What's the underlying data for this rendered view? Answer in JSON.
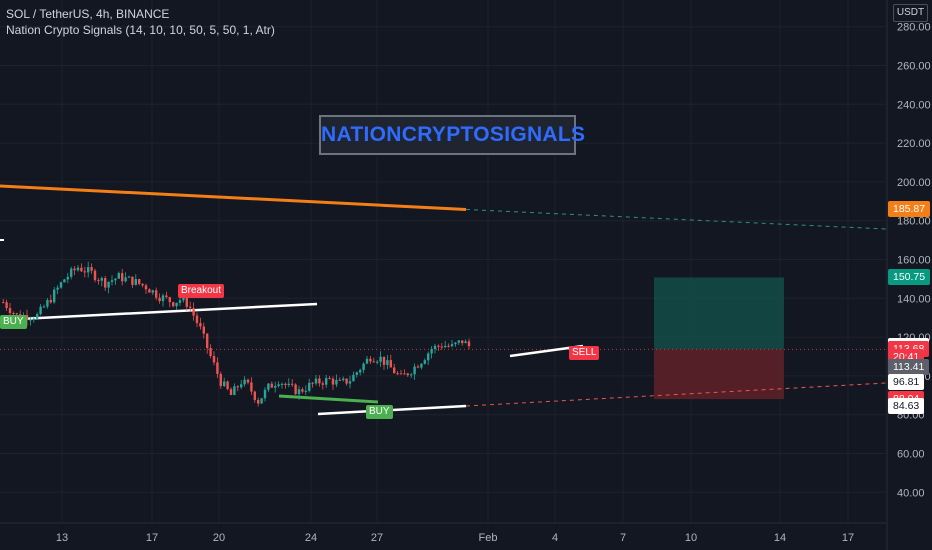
{
  "header": {
    "symbol_line": "SOL / TetherUS, 4h, BINANCE",
    "indicator_line": "Nation Crypto Signals  (14, 10, 10, 50, 5, 50, 1, Atr)"
  },
  "price_axis_unit": "USDT",
  "watermark": "NATIONCRYPTOSIGNALS",
  "signal_labels": {
    "breakout": "Breakout",
    "buy_left": "BUY",
    "buy_bottom": "BUY",
    "sell": "SELL"
  },
  "price_labels": [
    {
      "key": "orange_line",
      "text": "185.87",
      "price": 185.87,
      "bg": "#f57f17",
      "fg": "#ffffff"
    },
    {
      "key": "take_profit",
      "text": "150.75",
      "price": 150.75,
      "bg": "#089981",
      "fg": "#ffffff"
    },
    {
      "key": "high",
      "text": "115.56",
      "price": 115.56,
      "bg": "#ffffff",
      "fg": "#131722"
    },
    {
      "key": "last",
      "text": "113.68",
      "price": 113.68,
      "bg": "#f23645",
      "fg": "#ffffff"
    },
    {
      "key": "countdown",
      "text": "20:41",
      "price": 109.6,
      "bg": "#f23645",
      "fg": "#ffffff"
    },
    {
      "key": "trend",
      "text": "113.41",
      "price": 104.5,
      "bg": "#5d606b",
      "fg": "#ffffff"
    },
    {
      "key": "low",
      "text": "96.81",
      "price": 96.81,
      "bg": "#ffffff",
      "fg": "#131722"
    },
    {
      "key": "stop",
      "text": "88.04",
      "price": 88.04,
      "bg": "#f23645",
      "fg": "#ffffff"
    },
    {
      "key": "close_low",
      "text": "84.63",
      "price": 84.63,
      "bg": "#ffffff",
      "fg": "#131722"
    }
  ],
  "colors": {
    "background": "#131722",
    "grid": "#1e222d",
    "up": "#26a69a",
    "down": "#ef5350",
    "orange_trend": "#f57f17",
    "teal_dash": "#2c8f87",
    "support_line": "#ffffff",
    "breakout": "#f23645",
    "buy": "#4caf50",
    "tp_zone": "#134e48",
    "sl_zone": "#5c2027"
  },
  "chart_data": {
    "type": "candlestick",
    "title": "SOL / TetherUS, 4h, BINANCE",
    "y_unit": "USDT",
    "ylim": [
      24,
      290
    ],
    "y_ticks": [
      40,
      60,
      80,
      100,
      120,
      140,
      160,
      180,
      200,
      220,
      240,
      260,
      280
    ],
    "y_tick_labels": [
      "40.00",
      "60.00",
      "80.00",
      "100.00",
      "120.00",
      "140.00",
      "160.00",
      "180.00",
      "200.00",
      "220.00",
      "240.00",
      "260.00",
      "280.00"
    ],
    "x_tick_labels": [
      "13",
      "17",
      "20",
      "24",
      "27",
      "Feb",
      "4",
      "7",
      "10",
      "14",
      "17"
    ],
    "close_path": [
      [
        0,
        138
      ],
      [
        4,
        131
      ],
      [
        10,
        131
      ],
      [
        14,
        140
      ],
      [
        18,
        150
      ],
      [
        22,
        156
      ],
      [
        26,
        153
      ],
      [
        30,
        148
      ],
      [
        34,
        151
      ],
      [
        38,
        149
      ],
      [
        42,
        146
      ],
      [
        46,
        141
      ],
      [
        50,
        138
      ],
      [
        53,
        140
      ],
      [
        55,
        135
      ],
      [
        58,
        124
      ],
      [
        61,
        110
      ],
      [
        64,
        97
      ],
      [
        67,
        90
      ],
      [
        70,
        97
      ],
      [
        72,
        95
      ],
      [
        75,
        87
      ],
      [
        78,
        94
      ],
      [
        81,
        98
      ],
      [
        84,
        94
      ],
      [
        87,
        92
      ],
      [
        90,
        95
      ],
      [
        93,
        97
      ],
      [
        96,
        98
      ],
      [
        99,
        96
      ],
      [
        102,
        98
      ],
      [
        105,
        104
      ],
      [
        108,
        110
      ],
      [
        111,
        109
      ],
      [
        114,
        104
      ],
      [
        117,
        99
      ],
      [
        120,
        103
      ],
      [
        123,
        108
      ],
      [
        126,
        114
      ],
      [
        129,
        116
      ],
      [
        132,
        115
      ],
      [
        135,
        118
      ],
      [
        138,
        114
      ]
    ],
    "candle_count": 138,
    "grid": true,
    "last_price": 113.68,
    "high_label": 115.56,
    "low_label": 96.81,
    "breakout_level": 150.75
  }
}
